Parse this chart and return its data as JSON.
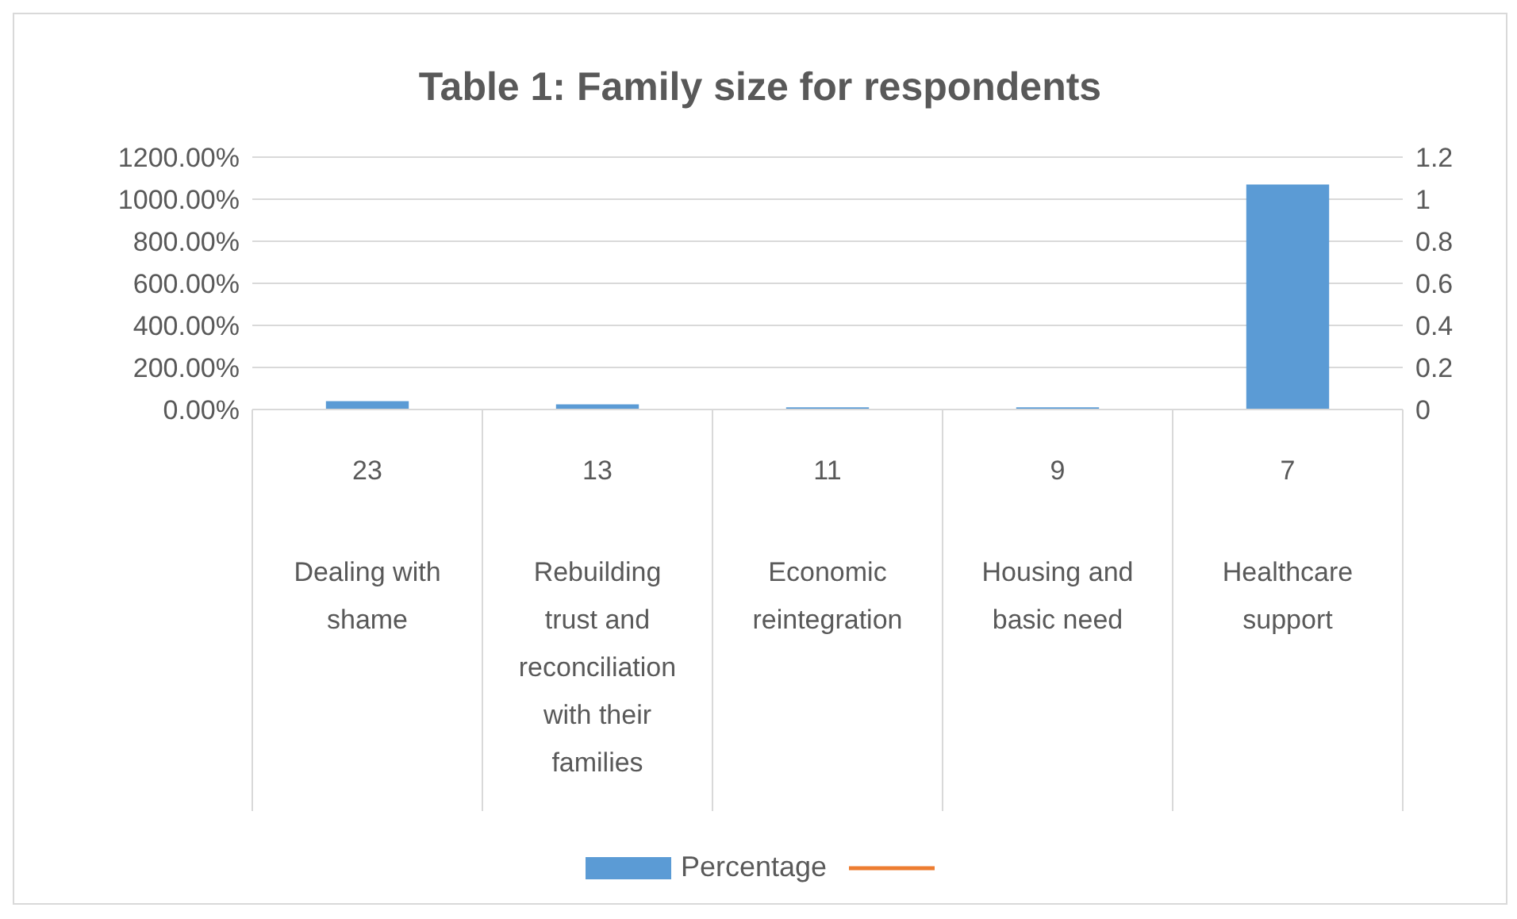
{
  "chart_data": {
    "type": "bar",
    "title": "Table 1: Family size for respondents",
    "categories": [
      "23\nDealing with shame",
      "13\nRebuilding trust and reconciliation with their families",
      "11\nEconomic reintegration",
      "9\nHousing and basic need",
      "7\nHealthcare support"
    ],
    "series": [
      {
        "name": "Percentage",
        "color": "#5b9bd5",
        "values": [
          40,
          25,
          10,
          10,
          1070
        ]
      },
      {
        "type": "line",
        "axis": "y2",
        "color": "#ed7d31",
        "values": [
          null,
          null,
          null,
          null,
          null
        ]
      }
    ],
    "ylim": [
      0,
      1200
    ],
    "yticks": [
      {
        "value": 0,
        "label": "0.00%"
      },
      {
        "value": 200,
        "label": "200.00%"
      },
      {
        "value": 400,
        "label": "400.00%"
      },
      {
        "value": 600,
        "label": "600.00%"
      },
      {
        "value": 800,
        "label": "800.00%"
      },
      {
        "value": 1000,
        "label": "1000.00%"
      },
      {
        "value": 1200,
        "label": "1200.00%"
      }
    ],
    "y2lim": [
      0,
      1.2
    ],
    "y2ticks": [
      0,
      0.2,
      0.4,
      0.6,
      0.8,
      1,
      1.2
    ],
    "grid": "y",
    "legend": "bottom"
  }
}
